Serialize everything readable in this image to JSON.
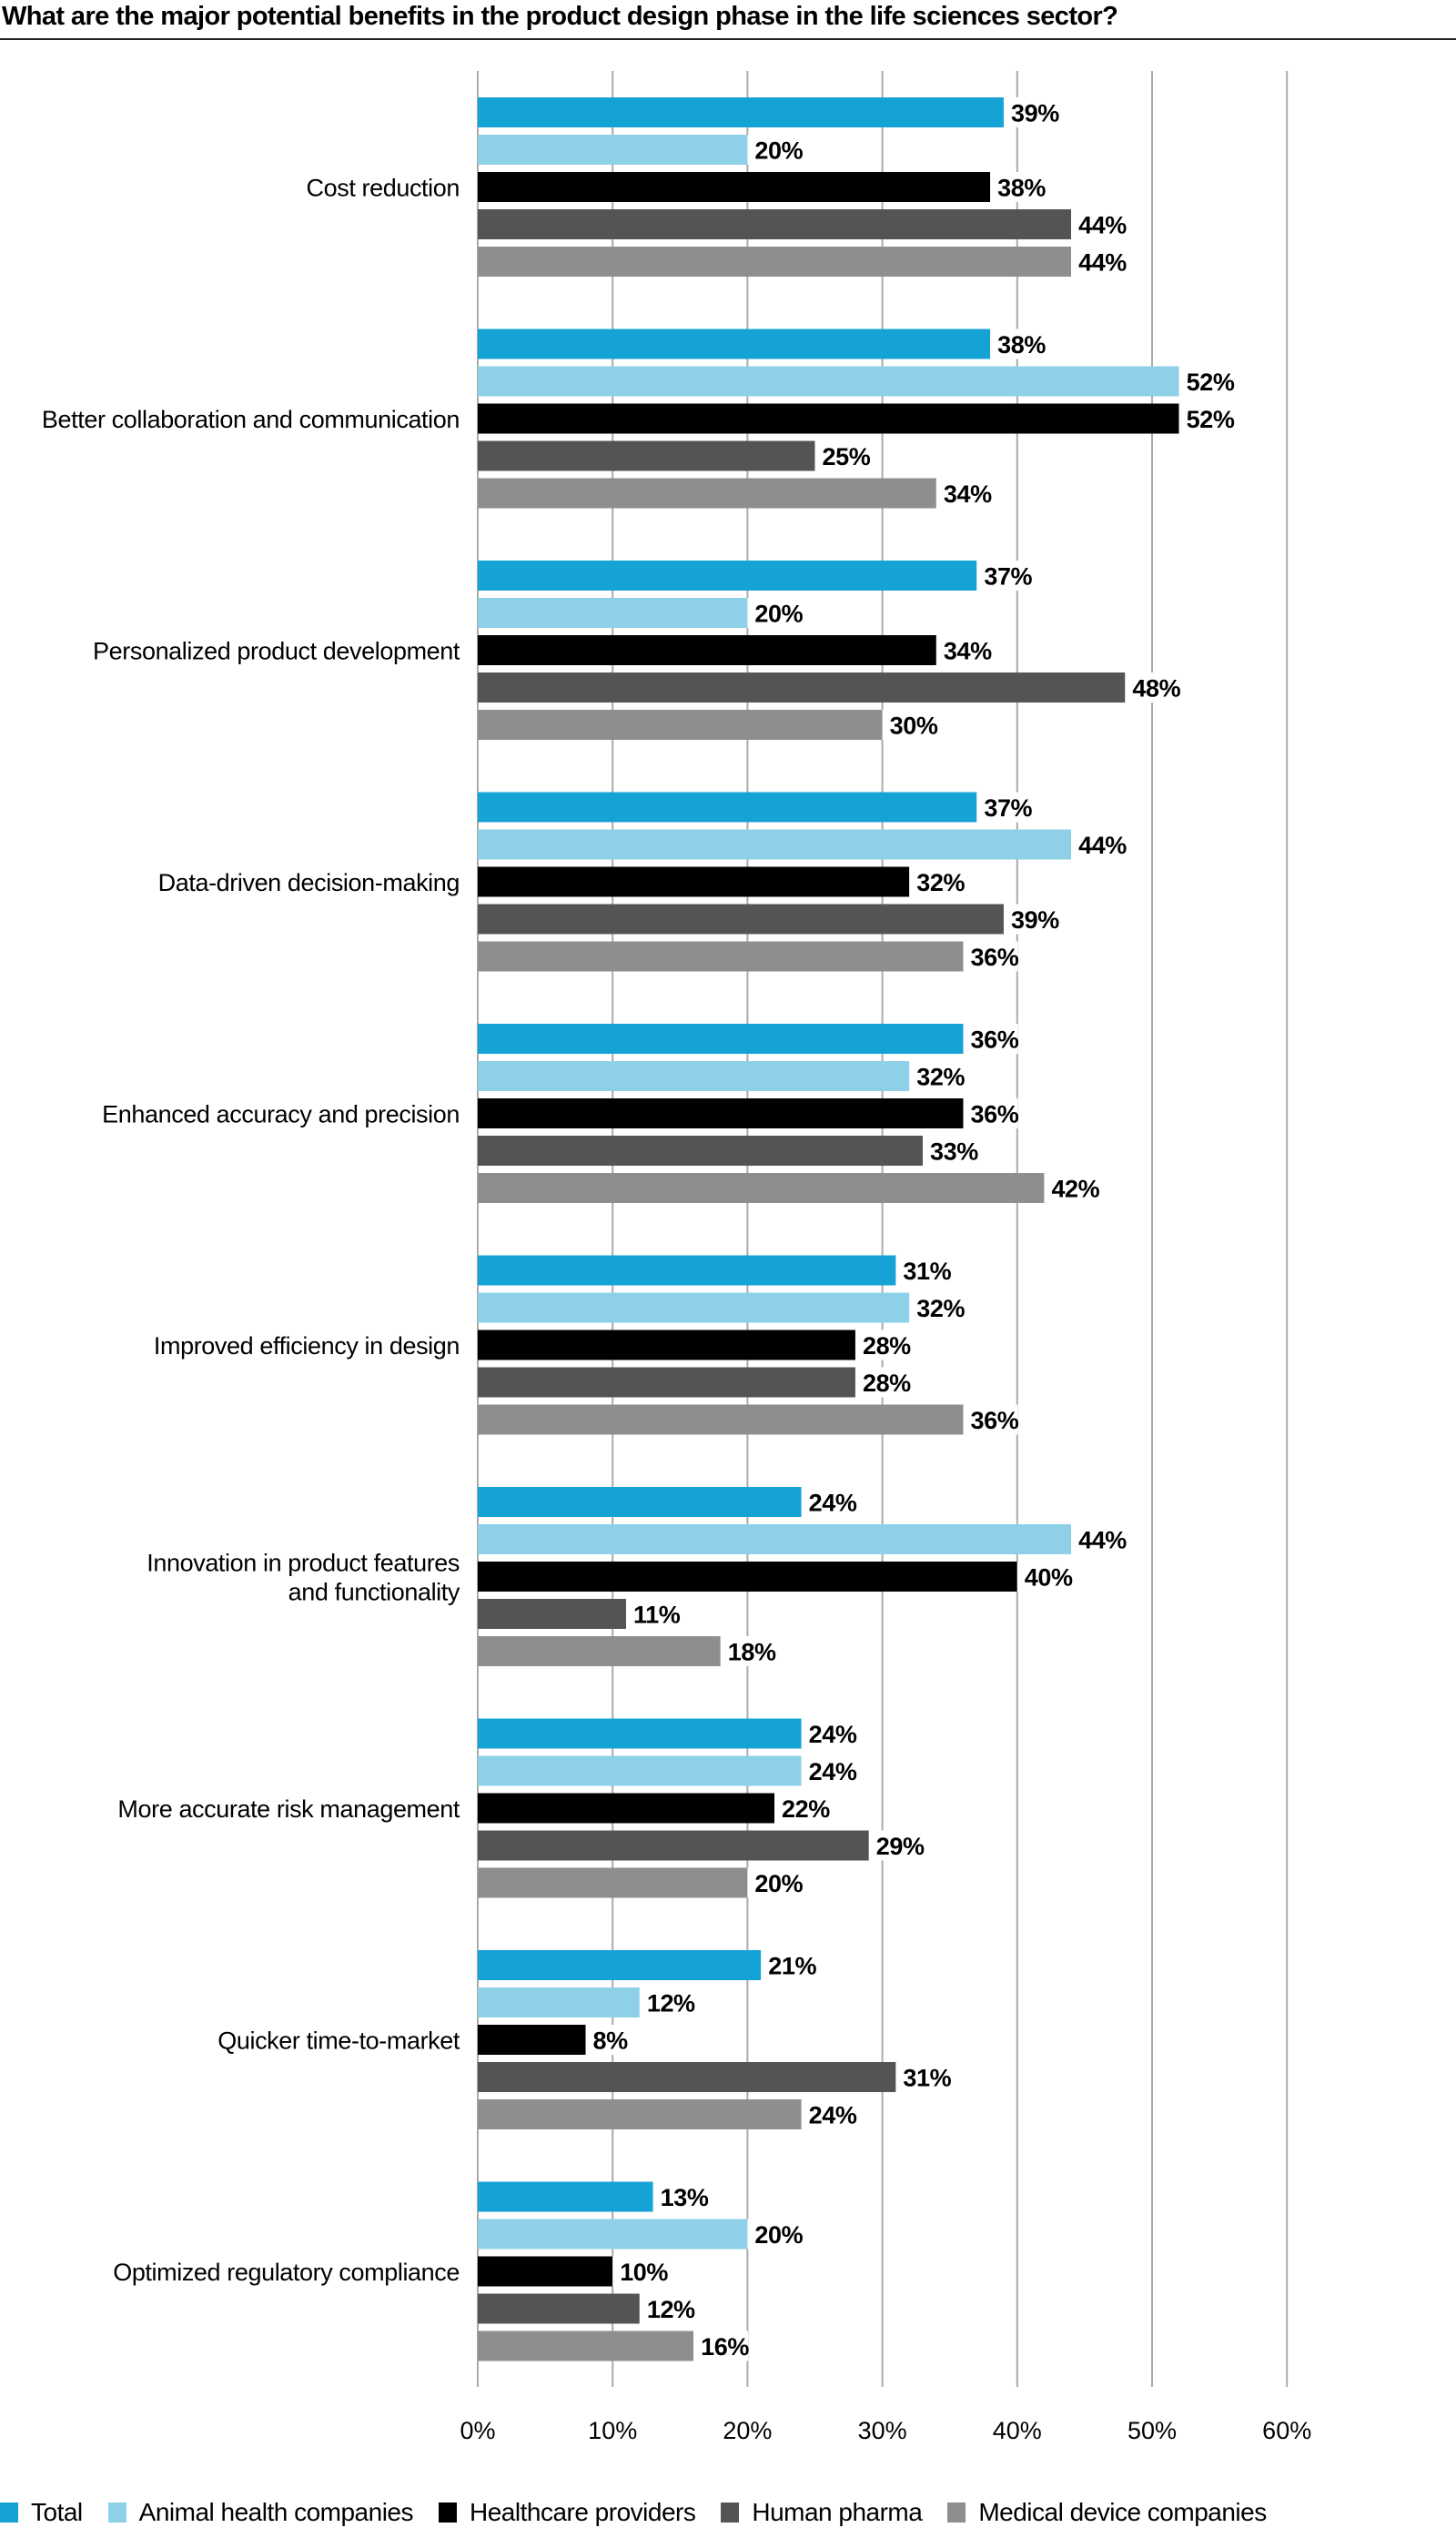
{
  "chart_data": {
    "type": "bar",
    "orientation": "horizontal",
    "title": "What are the major potential benefits in the product design phase in the life sciences sector?",
    "categories": [
      "Cost reduction",
      "Better collaboration and communication",
      "Personalized product development",
      "Data-driven decision-making",
      "Enhanced accuracy and precision",
      "Improved efficiency in design",
      "Innovation in product features and functionality",
      "More accurate risk management",
      "Quicker time-to-market",
      "Optimized regulatory compliance"
    ],
    "series": [
      {
        "name": "Total",
        "color": "#15a3d6",
        "values": [
          39,
          38,
          37,
          37,
          36,
          31,
          24,
          24,
          21,
          13
        ]
      },
      {
        "name": "Animal health companies",
        "color": "#8dd0e8",
        "values": [
          20,
          52,
          20,
          44,
          32,
          32,
          44,
          24,
          12,
          20
        ]
      },
      {
        "name": "Healthcare providers",
        "color": "#000000",
        "values": [
          38,
          52,
          34,
          32,
          36,
          28,
          40,
          22,
          8,
          10
        ]
      },
      {
        "name": "Human pharma",
        "color": "#545454",
        "values": [
          44,
          25,
          48,
          39,
          33,
          28,
          11,
          29,
          31,
          12
        ]
      },
      {
        "name": "Medical device companies",
        "color": "#8e8e8e",
        "values": [
          44,
          34,
          30,
          36,
          42,
          36,
          18,
          20,
          24,
          16
        ]
      }
    ],
    "xlim": [
      0,
      60
    ],
    "xticks": [
      "0%",
      "10%",
      "20%",
      "30%",
      "40%",
      "50%",
      "60%"
    ],
    "value_suffix": "%",
    "grid": "vertical",
    "legend": "bottom"
  }
}
